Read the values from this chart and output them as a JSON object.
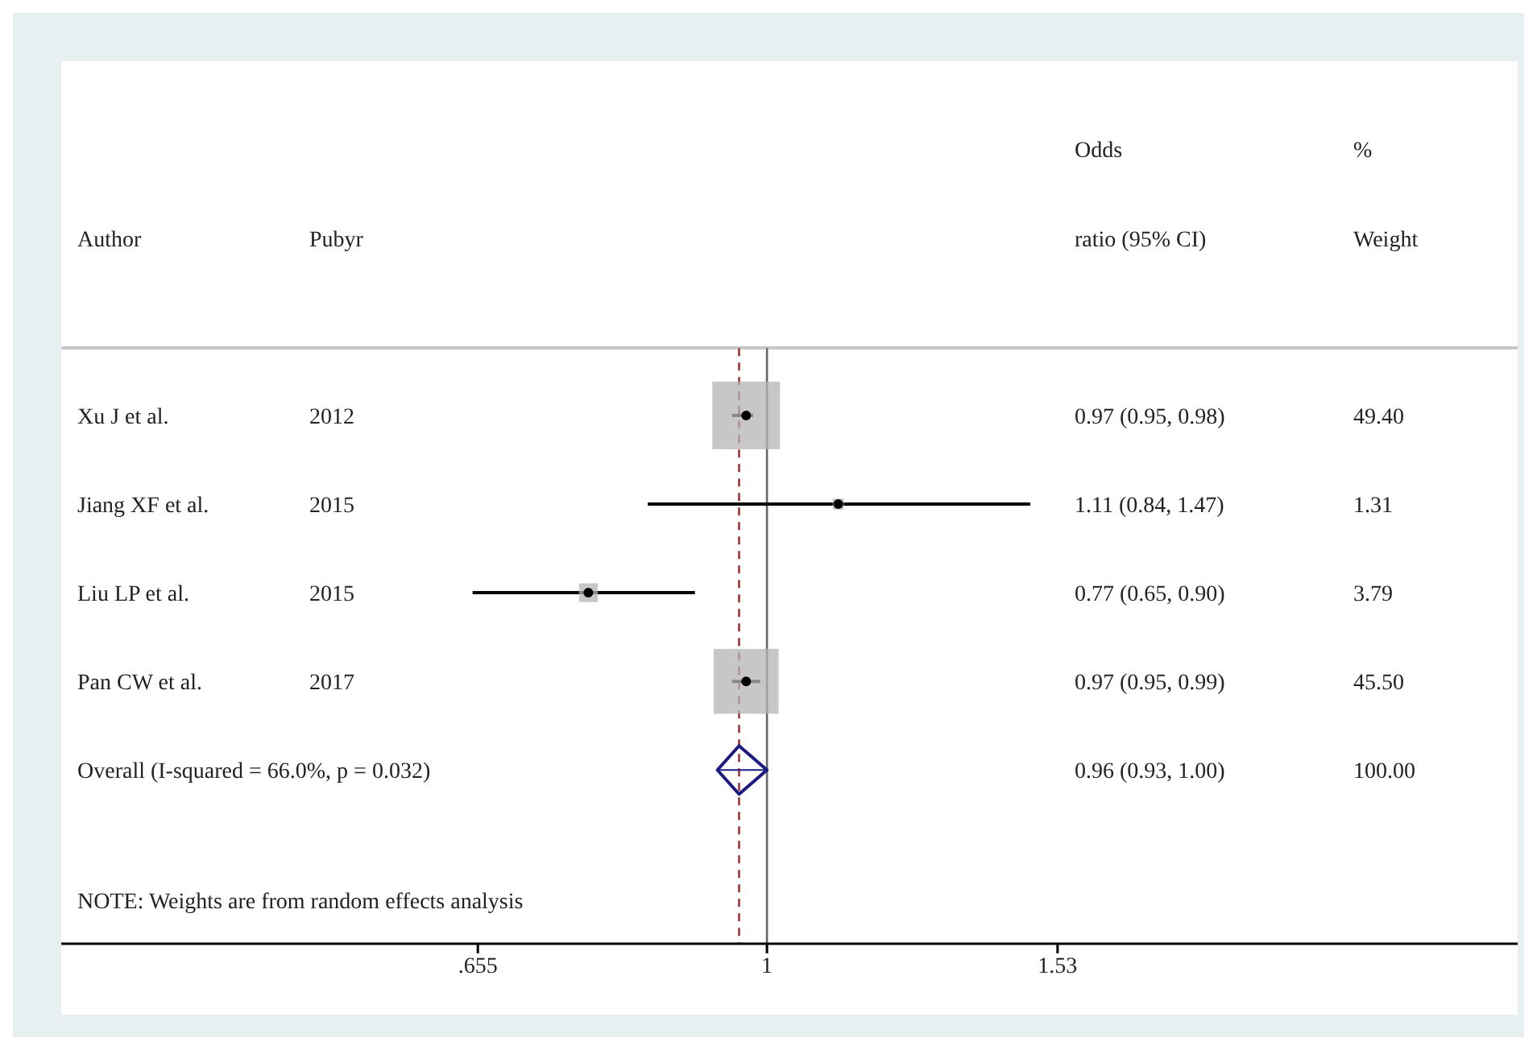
{
  "chart_data": {
    "type": "bubble",
    "orientation": "horizontal",
    "log": "x",
    "grid": false,
    "legend": false,
    "categories": [
      "Xu J et al.",
      "Jiang XF et al.",
      "Liu LP et al.",
      "Pan CW et al.",
      "Overall  (I-squared = 66.0%, p = 0.032)"
    ],
    "xlim": [
      0.356,
      3.0
    ],
    "xticks": [
      {
        "value": 0.655,
        "label": ".655"
      },
      1,
      1.53
    ],
    "series": [
      {
        "type": "bubble",
        "marker": "square",
        "color": "#b4b4b4",
        "values": [
          0.97,
          1.11,
          0.77,
          0.97,
          null
        ],
        "errors": [
          [
            0.95,
            0.98
          ],
          [
            0.84,
            1.47
          ],
          [
            0.65,
            0.9
          ],
          [
            0.95,
            0.99
          ],
          null
        ],
        "sizes": [
          1,
          0.0265,
          0.0767,
          0.921,
          null
        ]
      },
      {
        "type": "scatter",
        "marker": "diamond",
        "color": "#1a1a80",
        "values": [
          null,
          null,
          null,
          null,
          0.96
        ],
        "errors": [
          null,
          null,
          null,
          null,
          [
            0.93,
            1.0
          ]
        ]
      }
    ],
    "ref_lines": [
      {
        "axis": "x",
        "value": 1,
        "color": "#666666",
        "line_style": "solid"
      },
      {
        "axis": "x",
        "value": 0.96,
        "color": "#a03535",
        "line_style": "dashed"
      }
    ],
    "annotations": [
      "Author",
      "Pubyr",
      "Odds",
      "ratio (95% CI)",
      "%",
      "Weight",
      "2012",
      "0.97 (0.95, 0.98)",
      "49.40",
      "2015",
      "1.11 (0.84, 1.47)",
      "1.31",
      "2015",
      "0.77 (0.65, 0.90)",
      "3.79",
      "2017",
      "0.97 (0.95, 0.99)",
      "45.50",
      "0.96 (0.93, 1.00)",
      "100.00",
      "NOTE: Weights are from random effects analysis"
    ]
  }
}
